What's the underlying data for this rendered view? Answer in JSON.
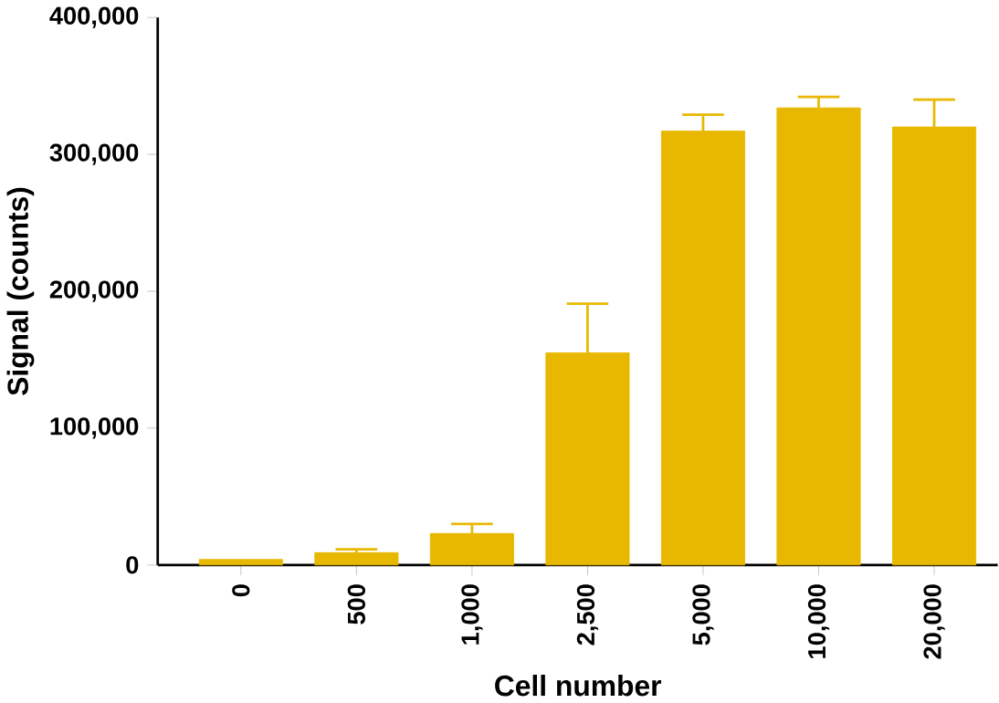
{
  "chart_data": {
    "type": "bar",
    "xlabel": "Cell number",
    "ylabel": "Signal (counts)",
    "categories": [
      "0",
      "500",
      "1,000",
      "2,500",
      "5,000",
      "10,000",
      "20,000"
    ],
    "values": [
      4000,
      9000,
      23000,
      155000,
      317000,
      334000,
      320000
    ],
    "errors": [
      null,
      [
        9000,
        11500
      ],
      [
        23000,
        30000
      ],
      [
        155000,
        191000
      ],
      [
        317000,
        329000
      ],
      [
        334000,
        342000
      ],
      [
        320000,
        340000
      ]
    ],
    "color": "#e8b800",
    "ylim": [
      0,
      400000
    ],
    "yticks": [
      {
        "value": 0,
        "label": "0"
      },
      {
        "value": 100000,
        "label": "100,000"
      },
      {
        "value": 200000,
        "label": "200,000"
      },
      {
        "value": 300000,
        "label": "300,000"
      },
      {
        "value": 400000,
        "label": "400,000"
      }
    ]
  }
}
